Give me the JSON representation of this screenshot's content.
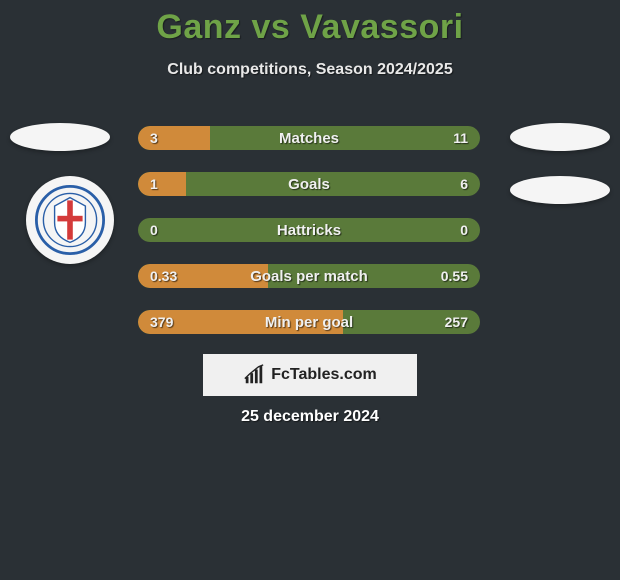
{
  "title": "Ganz vs Vavassori",
  "subtitle": "Club competitions, Season 2024/2025",
  "date": "25 december 2024",
  "footer_text": "FcTables.com",
  "colors": {
    "background": "#2a3035",
    "title": "#6fa347",
    "bar_right": "#5a7a3a",
    "bar_left": "#d08a3a",
    "badge_bg": "#f5f5f5",
    "footer_bg": "#f0f0f0",
    "club_primary": "#2a5fa8",
    "club_cross": "#d43a3a"
  },
  "bars": [
    {
      "label": "Matches",
      "left": "3",
      "right": "11",
      "left_pct": 21
    },
    {
      "label": "Goals",
      "left": "1",
      "right": "6",
      "left_pct": 14
    },
    {
      "label": "Hattricks",
      "left": "0",
      "right": "0",
      "left_pct": 0
    },
    {
      "label": "Goals per match",
      "left": "0.33",
      "right": "0.55",
      "left_pct": 38
    },
    {
      "label": "Min per goal",
      "left": "379",
      "right": "257",
      "left_pct": 60
    }
  ]
}
